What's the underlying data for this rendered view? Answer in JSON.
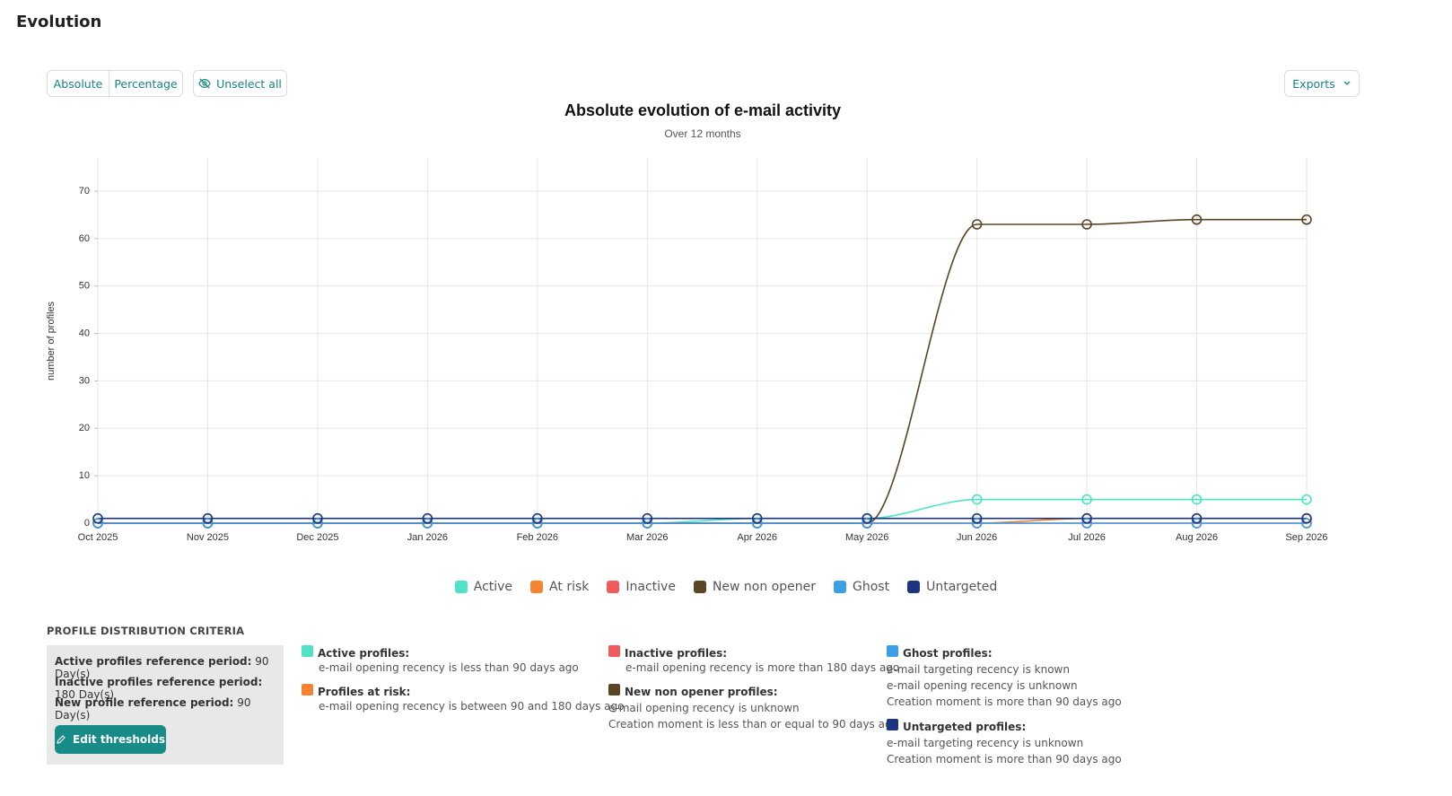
{
  "page": {
    "title": "Evolution"
  },
  "toolbar": {
    "modes": [
      "Absolute",
      "Percentage"
    ],
    "unselect": "Unselect all",
    "exports": "Exports"
  },
  "chart_data": {
    "type": "line",
    "title": "Absolute evolution of e-mail activity",
    "subtitle": "Over 12 months",
    "y_label": "number of profiles",
    "categories": [
      "Oct 2025",
      "Nov 2025",
      "Dec 2025",
      "Jan 2026",
      "Feb 2026",
      "Mar 2026",
      "Apr 2026",
      "May 2026",
      "Jun 2026",
      "Jul 2026",
      "Aug 2026",
      "Sep 2026"
    ],
    "series": [
      {
        "name": "Active",
        "color": "#4fe3c4",
        "values": [
          0,
          0,
          0,
          0,
          0,
          0,
          1,
          1,
          5,
          5,
          5,
          5
        ]
      },
      {
        "name": "At risk",
        "color": "#f5832f",
        "values": [
          0,
          0,
          0,
          0,
          0,
          0,
          0,
          0,
          0,
          1,
          1,
          1
        ]
      },
      {
        "name": "Inactive",
        "color": "#ef5b5b",
        "values": [
          0,
          0,
          0,
          0,
          0,
          0,
          0,
          0,
          0,
          0,
          0,
          0
        ]
      },
      {
        "name": "New non opener",
        "color": "#5a4526",
        "values": [
          0,
          0,
          0,
          0,
          0,
          0,
          0,
          0,
          63,
          63,
          64,
          64
        ]
      },
      {
        "name": "Ghost",
        "color": "#3b9ee6",
        "values": [
          0,
          0,
          0,
          0,
          0,
          0,
          0,
          0,
          0,
          0,
          0,
          0
        ]
      },
      {
        "name": "Untargeted",
        "color": "#1d3580",
        "values": [
          1,
          1,
          1,
          1,
          1,
          1,
          1,
          1,
          1,
          1,
          1,
          1
        ]
      }
    ],
    "ylim": [
      0,
      77
    ],
    "yticks": [
      0,
      10,
      20,
      30,
      40,
      50,
      60,
      70
    ],
    "grid": true,
    "legend": "bottom"
  },
  "criteria": {
    "title": "PROFILE DISTRIBUTION CRITERIA",
    "settings": [
      {
        "label": "Active profiles reference period:",
        "value": "90 Day(s)"
      },
      {
        "label": "Inactive profiles reference period:",
        "value": "180 Day(s)"
      },
      {
        "label": "New profile reference period:",
        "value": "90 Day(s)"
      }
    ],
    "button": "Edit thresholds",
    "columns": [
      [
        {
          "color": "#4fe3c4",
          "title": "Active profiles:",
          "lines": [
            "e-mail opening recency is less than 90 days ago"
          ]
        },
        {
          "color": "#f5832f",
          "title": "Profiles at risk:",
          "lines": [
            "e-mail opening recency is between 90 and 180 days ago"
          ]
        }
      ],
      [
        {
          "color": "#ef5b5b",
          "title": "Inactive profiles:",
          "lines": [
            "e-mail opening recency is more than 180 days ago"
          ]
        },
        {
          "color": "#5a4526",
          "title": "New non opener profiles:",
          "lines": [
            "e-mail opening recency is unknown",
            "Creation moment is less than or equal to 90 days ago"
          ]
        }
      ],
      [
        {
          "color": "#3b9ee6",
          "title": "Ghost profiles:",
          "lines": [
            "e-mail targeting recency is known",
            "e-mail opening recency is unknown",
            "Creation moment is more than 90 days ago"
          ]
        },
        {
          "color": "#1d3580",
          "title": "Untargeted profiles:",
          "lines": [
            "e-mail targeting recency is unknown",
            "Creation moment is more than 90 days ago"
          ]
        }
      ]
    ]
  }
}
